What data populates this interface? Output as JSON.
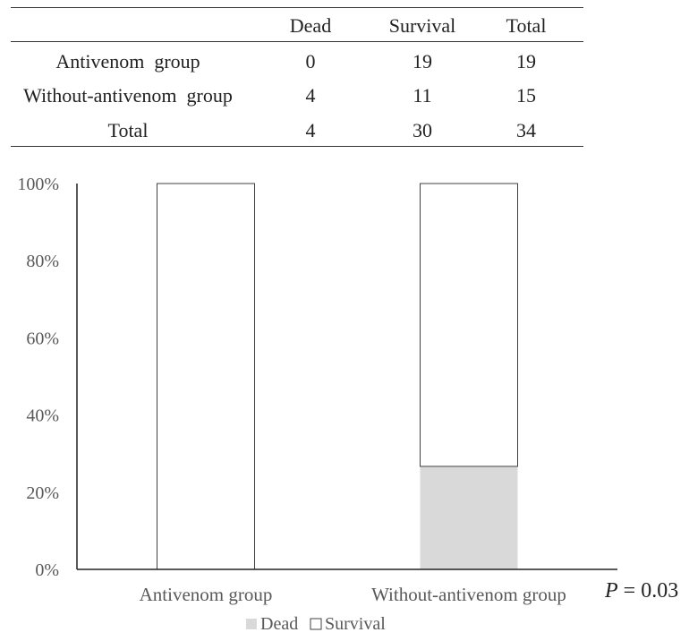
{
  "table": {
    "headers": [
      "",
      "Dead",
      "Survival",
      "Total"
    ],
    "rows": [
      {
        "label": "Antivenom  group",
        "dead": "0",
        "survival": "19",
        "total": "19"
      },
      {
        "label": "Without-antivenom  group",
        "dead": "4",
        "survival": "11",
        "total": "15"
      },
      {
        "label": "Total",
        "dead": "4",
        "survival": "30",
        "total": "34"
      }
    ]
  },
  "chart_data": {
    "type": "bar",
    "stacked": true,
    "percent": true,
    "categories": [
      "Antivenom group",
      "Without-antivenom group"
    ],
    "series": [
      {
        "name": "Dead",
        "values": [
          0,
          26.7
        ],
        "color": "#d9d9d9"
      },
      {
        "name": "Survival",
        "values": [
          100,
          73.3
        ],
        "color": "#ffffff"
      }
    ],
    "ylim": [
      0,
      100
    ],
    "yticks": [
      "0%",
      "20%",
      "40%",
      "60%",
      "80%",
      "100%"
    ],
    "legend_position": "bottom",
    "grid": false
  },
  "annotation": {
    "p_symbol": "P",
    "p_rest": " = 0.03"
  }
}
